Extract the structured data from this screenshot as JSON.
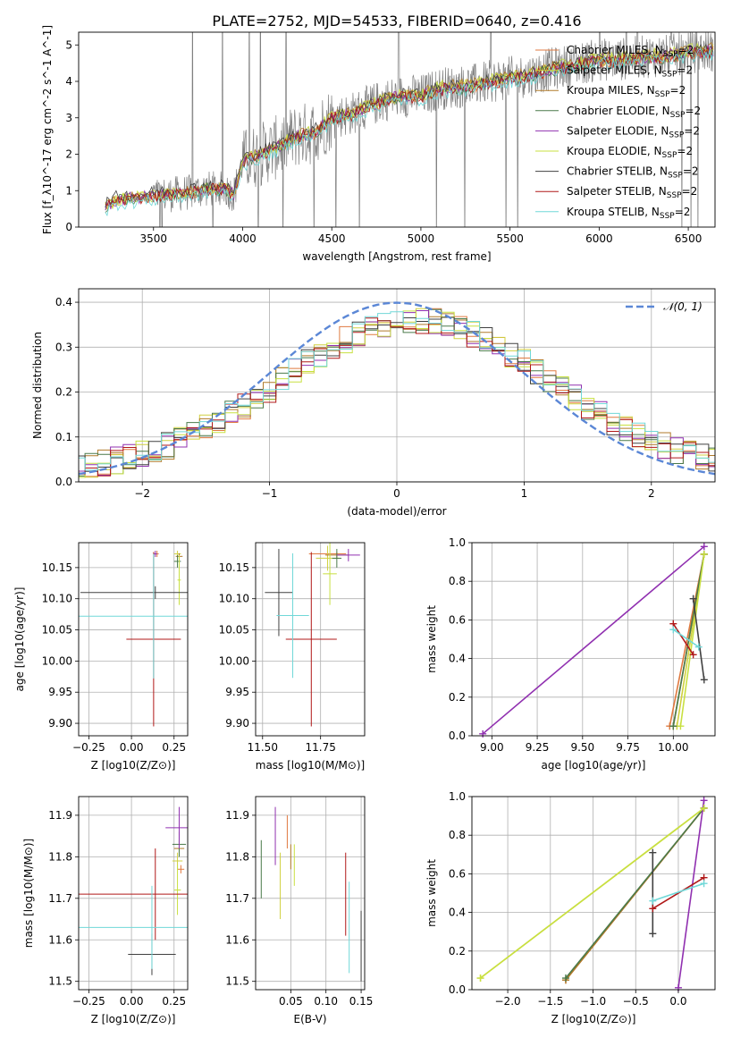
{
  "title": "PLATE=2752, MJD=54533, FIBERID=0640, z=0.416",
  "model_colors": [
    "#e07a40",
    "#d0d040",
    "#b07a2a",
    "#4a7a4a",
    "#9030b0",
    "#c8e040",
    "#404040",
    "#b01818",
    "#70d8d8"
  ],
  "chart_data": [
    {
      "id": "spectrum",
      "type": "line",
      "xlabel": "wavelength [Angstrom, rest frame]",
      "ylabel": "Flux [f_λ10^-17 erg cm^-2 s^-1 A^-1]",
      "xlim": [
        3080,
        6650
      ],
      "ylim": [
        0,
        5.35
      ],
      "xticks": [
        3500,
        4000,
        4500,
        5000,
        5500,
        6000,
        6500
      ],
      "yticks": [
        0,
        1,
        2,
        3,
        4,
        5
      ],
      "grid": false,
      "legend_position": "top-right",
      "legend": [
        {
          "label": "Chabrier MILES, N",
          "sub": "SSP",
          "tail": "=2"
        },
        {
          "label": "Salpeter MILES, N",
          "sub": "SSP",
          "tail": "=2"
        },
        {
          "label": "Kroupa MILES, N",
          "sub": "SSP",
          "tail": "=2"
        },
        {
          "label": "Chabrier ELODIE, N",
          "sub": "SSP",
          "tail": "=2"
        },
        {
          "label": "Salpeter ELODIE, N",
          "sub": "SSP",
          "tail": "=2"
        },
        {
          "label": "Kroupa ELODIE, N",
          "sub": "SSP",
          "tail": "=2"
        },
        {
          "label": "Chabrier STELIB, N",
          "sub": "SSP",
          "tail": "=2"
        },
        {
          "label": "Salpeter STELIB, N",
          "sub": "SSP",
          "tail": "=2"
        },
        {
          "label": "Kroupa STELIB, N",
          "sub": "SSP",
          "tail": "=2"
        }
      ],
      "model_shape": {
        "x": [
          3230,
          3300,
          3400,
          3500,
          3600,
          3700,
          3800,
          3900,
          3950,
          4000,
          4100,
          4200,
          4300,
          4400,
          4500,
          4600,
          4700,
          4800,
          4900,
          5000,
          5100,
          5200,
          5300,
          5400,
          5500,
          5600,
          5700,
          5800,
          5900,
          6000,
          6100,
          6200,
          6300,
          6400,
          6500,
          6600
        ],
        "y": [
          0.55,
          0.75,
          0.8,
          0.85,
          0.9,
          0.95,
          1.05,
          1.05,
          0.9,
          1.8,
          2.0,
          2.2,
          2.5,
          2.6,
          3.0,
          3.1,
          3.3,
          3.5,
          3.6,
          3.6,
          3.8,
          3.85,
          3.9,
          4.0,
          4.1,
          4.15,
          4.3,
          4.4,
          4.5,
          4.6,
          4.6,
          4.65,
          4.7,
          4.7,
          4.8,
          4.85
        ]
      }
    },
    {
      "id": "residuals",
      "type": "line",
      "xlabel": "(data-model)/error",
      "ylabel": "Normed distribution",
      "xlim": [
        -2.5,
        2.5
      ],
      "ylim": [
        0,
        0.43
      ],
      "xticks": [
        -2,
        -1,
        0,
        1,
        2
      ],
      "yticks": [
        0.0,
        0.1,
        0.2,
        0.3,
        0.4
      ],
      "grid": true,
      "legend_position": "top-right",
      "gauss_label": "𝒩(0, 1)"
    },
    {
      "id": "age-vs-Z",
      "type": "scatter",
      "xlabel": "Z [log10(Z/Z⊙)]",
      "ylabel": "age  [log10(age/yr)]",
      "xlim": [
        -0.31,
        0.33
      ],
      "ylim": [
        9.88,
        10.19
      ],
      "xticks": [
        -0.25,
        0.0,
        0.25
      ],
      "yticks": [
        9.9,
        9.95,
        10.0,
        10.05,
        10.1,
        10.15
      ],
      "grid": true,
      "series": [
        {
          "x": 0.15,
          "y": 10.172,
          "xerr": 0.01,
          "yerr": 0.005,
          "c": 0
        },
        {
          "x": 0.27,
          "y": 10.172,
          "xerr": 0.02,
          "yerr": 0.005,
          "c": 1
        },
        {
          "x": 0.28,
          "y": 10.168,
          "xerr": 0.02,
          "yerr": 0.005,
          "c": 2
        },
        {
          "x": 0.27,
          "y": 10.16,
          "xerr": 0.02,
          "yerr": 0.01,
          "c": 3
        },
        {
          "x": 0.14,
          "y": 10.172,
          "xerr": 0.01,
          "yerr": 0.005,
          "c": 4
        },
        {
          "x": 0.28,
          "y": 10.13,
          "xerr": 0.01,
          "yerr": 0.04,
          "c": 5
        },
        {
          "x": 0.14,
          "y": 10.11,
          "xerr": 0.44,
          "yerr": 0.01,
          "c": 6
        },
        {
          "x": 0.13,
          "y": 10.035,
          "xerr": 0.16,
          "yerr": 0.14,
          "c": 7
        },
        {
          "x": 0.13,
          "y": 10.072,
          "xerr": 0.44,
          "yerr": 0.1,
          "c": 8
        }
      ]
    },
    {
      "id": "age-vs-mass",
      "type": "scatter",
      "xlabel": "mass [log10(M/M⊙)]",
      "ylabel": "",
      "xlim": [
        11.47,
        11.94
      ],
      "ylim": [
        9.88,
        10.19
      ],
      "xticks": [
        11.5,
        11.75
      ],
      "yticks": [
        9.9,
        9.95,
        10.0,
        10.05,
        10.1,
        10.15
      ],
      "grid": true,
      "series": [
        {
          "x": 11.78,
          "y": 10.172,
          "xerr": 0.08,
          "yerr": 0.005,
          "c": 0
        },
        {
          "x": 11.78,
          "y": 10.165,
          "xerr": 0.05,
          "yerr": 0.02,
          "c": 1
        },
        {
          "x": 11.82,
          "y": 10.17,
          "xerr": 0.05,
          "yerr": 0.005,
          "c": 2
        },
        {
          "x": 11.82,
          "y": 10.165,
          "xerr": 0.02,
          "yerr": 0.015,
          "c": 3
        },
        {
          "x": 11.87,
          "y": 10.17,
          "xerr": 0.05,
          "yerr": 0.01,
          "c": 4
        },
        {
          "x": 11.79,
          "y": 10.14,
          "xerr": 0.03,
          "yerr": 0.05,
          "c": 5
        },
        {
          "x": 11.57,
          "y": 10.11,
          "xerr": 0.06,
          "yerr": 0.07,
          "c": 6
        },
        {
          "x": 11.71,
          "y": 10.035,
          "xerr": 0.11,
          "yerr": 0.14,
          "c": 7
        },
        {
          "x": 11.63,
          "y": 10.073,
          "xerr": 0.07,
          "yerr": 0.1,
          "c": 8
        }
      ]
    },
    {
      "id": "weight-vs-age",
      "type": "line",
      "xlabel": "age  [log10(age/yr)]",
      "ylabel": "mass weight",
      "xlim": [
        8.89,
        10.23
      ],
      "ylim": [
        0,
        1.0
      ],
      "xticks": [
        9.0,
        9.25,
        9.5,
        9.75,
        10.0
      ],
      "yticks": [
        0.0,
        0.2,
        0.4,
        0.6,
        0.8,
        1.0
      ],
      "grid": true,
      "series": [
        {
          "x": [
            9.98,
            10.17
          ],
          "y": [
            0.05,
            0.94
          ],
          "c": 0
        },
        {
          "x": [
            10.02,
            10.17
          ],
          "y": [
            0.05,
            0.94
          ],
          "c": 1
        },
        {
          "x": [
            10.0,
            10.17
          ],
          "y": [
            0.05,
            0.94
          ],
          "c": 2
        },
        {
          "x": [
            10.0,
            10.17
          ],
          "y": [
            0.05,
            0.94
          ],
          "c": 3
        },
        {
          "x": [
            8.95,
            10.17
          ],
          "y": [
            0.01,
            0.98
          ],
          "c": 4
        },
        {
          "x": [
            10.04,
            10.17
          ],
          "y": [
            0.05,
            0.94
          ],
          "c": 5
        },
        {
          "x": [
            10.11,
            10.17
          ],
          "y": [
            0.71,
            0.29
          ],
          "c": 6
        },
        {
          "x": [
            10.0,
            10.11
          ],
          "y": [
            0.58,
            0.42
          ],
          "c": 7
        },
        {
          "x": [
            10.0,
            10.14
          ],
          "y": [
            0.55,
            0.46
          ],
          "c": 8
        }
      ]
    },
    {
      "id": "mass-vs-Z",
      "type": "scatter",
      "xlabel": "Z [log10(Z/Z⊙)]",
      "ylabel": "mass [log10(M/M⊙)]",
      "xlim": [
        -0.31,
        0.33
      ],
      "ylim": [
        11.48,
        11.945
      ],
      "xticks": [
        -0.25,
        0.0,
        0.25
      ],
      "yticks": [
        11.5,
        11.6,
        11.7,
        11.8,
        11.9
      ],
      "grid": true,
      "series": [
        {
          "x": 0.29,
          "y": 11.77,
          "xerr": 0.02,
          "yerr": 0.01,
          "c": 0
        },
        {
          "x": 0.27,
          "y": 11.79,
          "xerr": 0.03,
          "yerr": 0.02,
          "c": 1
        },
        {
          "x": 0.28,
          "y": 11.82,
          "xerr": 0.03,
          "yerr": 0.02,
          "c": 2
        },
        {
          "x": 0.28,
          "y": 11.83,
          "xerr": 0.04,
          "yerr": 0.03,
          "c": 3
        },
        {
          "x": 0.28,
          "y": 11.87,
          "xerr": 0.08,
          "yerr": 0.05,
          "c": 4
        },
        {
          "x": 0.27,
          "y": 11.72,
          "xerr": 0.02,
          "yerr": 0.06,
          "c": 5
        },
        {
          "x": 0.12,
          "y": 11.565,
          "xerr": 0.14,
          "yerr": 0.05,
          "c": 6
        },
        {
          "x": 0.14,
          "y": 11.71,
          "xerr": 0.46,
          "yerr": 0.11,
          "c": 7
        },
        {
          "x": 0.12,
          "y": 11.63,
          "xerr": 0.46,
          "yerr": 0.1,
          "c": 8
        }
      ]
    },
    {
      "id": "mass-vs-ebv",
      "type": "scatter",
      "xlabel": "E(B-V)",
      "ylabel": "",
      "xlim": [
        0.0,
        0.155
      ],
      "ylim": [
        11.48,
        11.945
      ],
      "xticks": [
        0.05,
        0.1,
        0.15
      ],
      "yticks": [
        11.5,
        11.6,
        11.7,
        11.8,
        11.9
      ],
      "grid": true,
      "series": [
        {
          "x": 0.045,
          "y": 11.86,
          "xerr": 0,
          "yerr": 0.04,
          "c": 0
        },
        {
          "x": 0.035,
          "y": 11.73,
          "xerr": 0,
          "yerr": 0.08,
          "c": 1
        },
        {
          "x": 0.05,
          "y": 11.8,
          "xerr": 0,
          "yerr": 0.03,
          "c": 2
        },
        {
          "x": 0.008,
          "y": 11.77,
          "xerr": 0,
          "yerr": 0.07,
          "c": 3
        },
        {
          "x": 0.028,
          "y": 11.85,
          "xerr": 0,
          "yerr": 0.07,
          "c": 4
        },
        {
          "x": 0.055,
          "y": 11.78,
          "xerr": 0,
          "yerr": 0.05,
          "c": 5
        },
        {
          "x": 0.15,
          "y": 11.585,
          "xerr": 0,
          "yerr": 0.085,
          "c": 6
        },
        {
          "x": 0.128,
          "y": 11.71,
          "xerr": 0,
          "yerr": 0.1,
          "c": 7
        },
        {
          "x": 0.133,
          "y": 11.63,
          "xerr": 0,
          "yerr": 0.11,
          "c": 8
        }
      ]
    },
    {
      "id": "weight-vs-Z",
      "type": "line",
      "xlabel": "Z [log10(Z/Z⊙)]",
      "ylabel": "mass weight",
      "xlim": [
        -2.42,
        0.43
      ],
      "ylim": [
        0,
        1.0
      ],
      "xticks": [
        -2.0,
        -1.5,
        -1.0,
        -0.5,
        0.0
      ],
      "yticks": [
        0.0,
        0.2,
        0.4,
        0.6,
        0.8,
        1.0
      ],
      "grid": true,
      "series": [
        {
          "x": [
            -1.32,
            0.3
          ],
          "y": [
            0.05,
            0.94
          ],
          "c": 0
        },
        {
          "x": [
            -2.32,
            0.3
          ],
          "y": [
            0.06,
            0.94
          ],
          "c": 1
        },
        {
          "x": [
            -1.32,
            0.3
          ],
          "y": [
            0.05,
            0.94
          ],
          "c": 2
        },
        {
          "x": [
            -1.32,
            0.3
          ],
          "y": [
            0.06,
            0.94
          ],
          "c": 3
        },
        {
          "x": [
            0.0,
            0.3
          ],
          "y": [
            0.01,
            0.98
          ],
          "c": 4
        },
        {
          "x": [
            -2.32,
            0.3
          ],
          "y": [
            0.06,
            0.94
          ],
          "c": 5
        },
        {
          "x": [
            -0.3,
            -0.3
          ],
          "y": [
            0.71,
            0.29
          ],
          "c": 6
        },
        {
          "x": [
            -0.3,
            0.3
          ],
          "y": [
            0.42,
            0.58
          ],
          "c": 7
        },
        {
          "x": [
            -0.3,
            0.3
          ],
          "y": [
            0.46,
            0.55
          ],
          "c": 8
        }
      ]
    }
  ]
}
